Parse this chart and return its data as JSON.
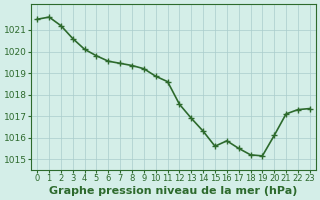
{
  "x": [
    0,
    1,
    2,
    3,
    4,
    5,
    6,
    7,
    8,
    9,
    10,
    11,
    12,
    13,
    14,
    15,
    16,
    17,
    18,
    19,
    20,
    21,
    22,
    23
  ],
  "y": [
    1021.5,
    1021.6,
    1021.2,
    1020.6,
    1020.1,
    1019.8,
    1019.55,
    1019.45,
    1019.35,
    1019.2,
    1018.85,
    1018.6,
    1017.55,
    1016.9,
    1016.3,
    1015.6,
    1015.85,
    1015.5,
    1015.2,
    1015.15,
    1016.1,
    1017.1,
    1017.3,
    1017.35
  ],
  "line_color": "#2d6a2d",
  "marker": "+",
  "markersize": 5,
  "linewidth": 1.2,
  "bg_color": "#d4eee8",
  "grid_color": "#aacccc",
  "ylabel_ticks": [
    1015,
    1016,
    1017,
    1018,
    1019,
    1020,
    1021
  ],
  "ylim": [
    1014.5,
    1022.2
  ],
  "xlim": [
    -0.5,
    23.5
  ],
  "xlabel": "Graphe pression niveau de la mer (hPa)",
  "xlabel_fontsize": 8,
  "tick_fontsize": 6.5,
  "axis_color": "#2d6a2d"
}
